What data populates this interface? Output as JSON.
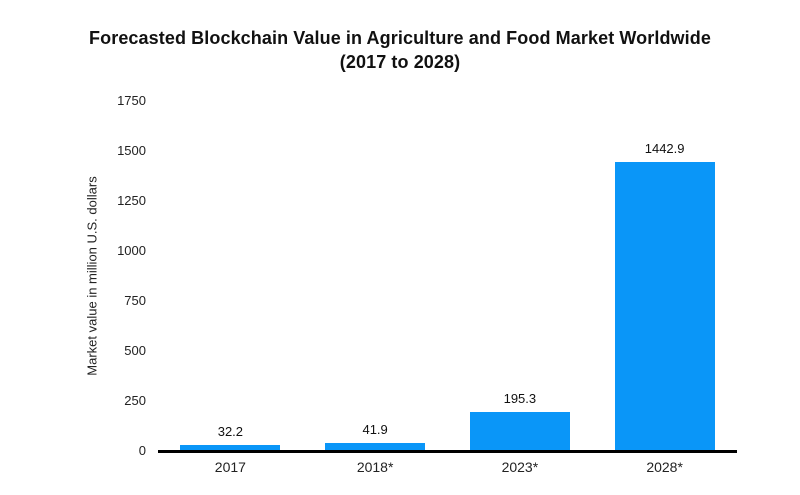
{
  "title": {
    "line1": "Forecasted Blockchain Value in Agriculture and Food Market Worldwide",
    "line2": "(2017 to 2028)"
  },
  "chart_data": {
    "type": "bar",
    "title": "Forecasted Blockchain Value in Agriculture and Food Market Worldwide (2017 to 2028)",
    "categories": [
      "2017",
      "2018*",
      "2023*",
      "2028*"
    ],
    "values": [
      32.2,
      41.9,
      195.3,
      1442.9
    ],
    "value_labels": [
      "32.2",
      "41.9",
      "195.3",
      "1442.9"
    ],
    "xlabel": "",
    "ylabel": "Market value in million U.S. dollars",
    "ylim": [
      0,
      1750
    ],
    "yticks": [
      0,
      250,
      500,
      750,
      1000,
      1250,
      1500,
      1750
    ],
    "grid": false,
    "legend": false,
    "colors": {
      "bar": "#0a96f8",
      "axis_line": "#000000",
      "title_text": "#111111",
      "label_text": "#222222",
      "background": "#ffffff"
    }
  }
}
